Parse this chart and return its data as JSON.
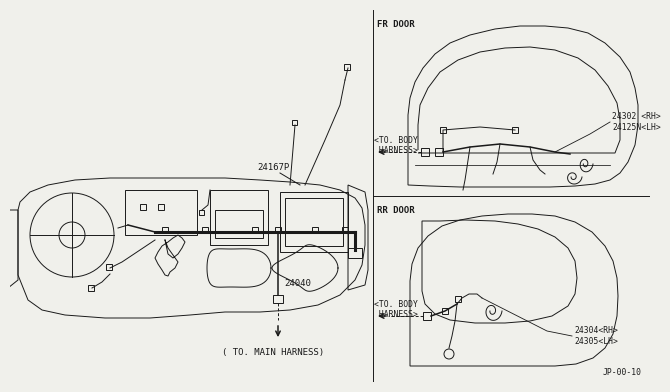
{
  "bg_color": "#f0f0eb",
  "line_color": "#1a1a1a",
  "text_color": "#1a1a1a",
  "fr_door_label": "FR DOOR",
  "rr_door_label": "RR DOOR",
  "fr_part1": "24302 <RH>",
  "fr_part2": "24125N<LH>",
  "rr_part1": "24304<RH>",
  "rr_part2": "24305<LH>",
  "dash_label": "24167P",
  "dash_part": "24040",
  "to_main": "( TO. MAIN HARNESS)",
  "to_body_fr": "<TO. BODY\n HARNESS>",
  "to_body_rr": "<TO. BODY\n HARNESS>",
  "page_ref": "JP-00-10",
  "fs_label": 6.5,
  "fs_small": 5.8
}
